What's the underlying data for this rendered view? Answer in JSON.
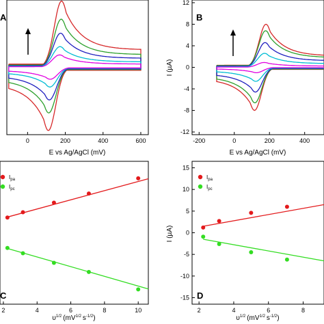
{
  "chart_data": [
    {
      "panel": "A",
      "type": "line",
      "xlabel": "E vs Ag/AgCl (mV)",
      "ylabel": "",
      "xlim": [
        -110,
        640
      ],
      "ylim": [
        -13,
        13
      ],
      "xticks": [
        "0",
        "200",
        "400",
        "600"
      ],
      "yticks": [],
      "arrow": "up",
      "series": [
        {
          "color": "#d62728",
          "peak_anodic": 12.8,
          "peak_cathodic": -12.2,
          "E_pa": 180,
          "E_pc": 110
        },
        {
          "color": "#2ca02c",
          "peak_anodic": 9.3,
          "peak_cathodic": -8.8,
          "E_pa": 178,
          "E_pc": 112
        },
        {
          "color": "#1f1fbf",
          "peak_anodic": 6.6,
          "peak_cathodic": -6.3,
          "E_pa": 175,
          "E_pc": 115
        },
        {
          "color": "#00bcd4",
          "peak_anodic": 4.0,
          "peak_cathodic": -3.8,
          "E_pa": 172,
          "E_pc": 118
        },
        {
          "color": "#e000e0",
          "peak_anodic": 2.4,
          "peak_cathodic": -2.3,
          "E_pa": 170,
          "E_pc": 120
        }
      ]
    },
    {
      "panel": "B",
      "type": "line",
      "xlabel": "E vs Ag/AgCl (mV)",
      "ylabel": "I (µA)",
      "xlim": [
        -240,
        510
      ],
      "ylim": [
        -12.5,
        12.5
      ],
      "xticks": [
        "-200",
        "0",
        "200",
        "400"
      ],
      "yticks": [
        "12",
        "8",
        "4",
        "0",
        "-4",
        "-8",
        "-12"
      ],
      "arrow": "up",
      "series": [
        {
          "color": "#d62728",
          "peak_anodic": 8.0,
          "peak_cathodic": -8.0,
          "E_pa": 180,
          "E_pc": 115
        },
        {
          "color": "#2ca02c",
          "peak_anodic": 6.8,
          "peak_cathodic": -6.6,
          "E_pa": 178,
          "E_pc": 117
        },
        {
          "color": "#1f1fbf",
          "peak_anodic": 4.6,
          "peak_cathodic": -4.6,
          "E_pa": 175,
          "E_pc": 120
        },
        {
          "color": "#00bcd4",
          "peak_anodic": 2.6,
          "peak_cathodic": -2.6,
          "E_pa": 172,
          "E_pc": 122
        },
        {
          "color": "#e000e0",
          "peak_anodic": 0.9,
          "peak_cathodic": -1.0,
          "E_pa": 170,
          "E_pc": 125
        }
      ]
    },
    {
      "panel": "C",
      "type": "scatter",
      "xlabel": "υ 1/2 (mV 1/2 s -1/2)",
      "ylabel": "",
      "xlim": [
        1.8,
        10.6
      ],
      "ylim": [
        -16.4,
        16.4
      ],
      "xticks": [
        "2",
        "4",
        "6",
        "8",
        "10"
      ],
      "yticks": [],
      "series": [
        {
          "name": "I pa",
          "color": "#e31a1c",
          "x": [
            2.24,
            3.16,
            5.0,
            7.07,
            10.0
          ],
          "y": [
            3.5,
            4.7,
            6.9,
            9.0,
            12.5
          ],
          "fit": [
            3.6,
            12.4
          ]
        },
        {
          "name": "I pc",
          "color": "#33dd22",
          "x": [
            2.24,
            3.16,
            5.0,
            7.07,
            10.0
          ],
          "y": [
            -3.5,
            -4.7,
            -6.9,
            -9.0,
            -13.0
          ],
          "fit": [
            -3.6,
            -12.9
          ]
        }
      ]
    },
    {
      "panel": "D",
      "type": "scatter",
      "xlabel": "υ 1/2 (mV 1/2 s -1/2)",
      "ylabel": "I (µA)",
      "xlim": [
        1.6,
        9.2
      ],
      "ylim": [
        -16.5,
        16.5
      ],
      "xticks": [
        "2",
        "4",
        "6",
        "8"
      ],
      "yticks": [
        "15",
        "10",
        "5",
        "0",
        "-5",
        "-10",
        "-15"
      ],
      "series": [
        {
          "name": "I pa",
          "color": "#e31a1c",
          "x": [
            2.24,
            3.16,
            5.0,
            7.07
          ],
          "y": [
            1.2,
            2.7,
            4.6,
            6.0
          ],
          "fit": [
            1.5,
            6.5
          ]
        },
        {
          "name": "I pc",
          "color": "#33dd22",
          "x": [
            2.24,
            3.16,
            5.0,
            7.07
          ],
          "y": [
            -0.9,
            -2.6,
            -4.5,
            -6.2
          ],
          "fit": [
            -1.5,
            -6.5
          ]
        }
      ]
    }
  ],
  "labels": {
    "panel_a": "A",
    "panel_b": "B",
    "panel_c": "C",
    "panel_d": "D",
    "xaxis_cv": "E vs Ag/AgCl (mV)",
    "xaxis_cv_b": "E vs Ag/AgCl (mV)",
    "yaxis_b": "I (µA)",
    "yaxis_d": "I (µA)",
    "legend_ipa": "I",
    "legend_ipa_sub": "pa",
    "legend_ipc": "I",
    "legend_ipc_sub": "pc",
    "legend_ipa_d": "I",
    "legend_ipa_sub_d": "pa",
    "legend_ipc_d": "I",
    "legend_ipc_sub_d": "pc",
    "xaxis_c_a": "υ",
    "xaxis_c_b": "1/2",
    "xaxis_c_c": "(mV",
    "xaxis_c_d": "1/2",
    "xaxis_c_e": "s",
    "xaxis_c_f": "-1/2",
    "xaxis_c_g": ")",
    "xaxis_d_a": "υ",
    "xaxis_d_b": "1/2",
    "xaxis_d_c": "(mV",
    "xaxis_d_d": "1/2",
    "xaxis_d_e": "s",
    "xaxis_d_f": "-1/2",
    "xaxis_d_g": ")"
  }
}
